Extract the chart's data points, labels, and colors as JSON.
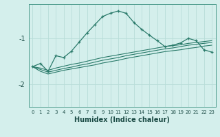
{
  "xlabel": "Humidex (Indice chaleur)",
  "ylabel": "",
  "background_color": "#d4efec",
  "line_color": "#2a7a6a",
  "grid_color": "#b8ddd8",
  "xlim": [
    -0.5,
    23.5
  ],
  "ylim": [
    -2.5,
    -0.25
  ],
  "xticks": [
    0,
    1,
    2,
    3,
    4,
    5,
    6,
    7,
    8,
    9,
    10,
    11,
    12,
    13,
    14,
    15,
    16,
    17,
    18,
    19,
    20,
    21,
    22,
    23
  ],
  "yticks": [
    -2,
    -1
  ],
  "series1_x": [
    0,
    1,
    2,
    3,
    4,
    5,
    6,
    7,
    8,
    9,
    10,
    11,
    12,
    13,
    14,
    15,
    16,
    17,
    18,
    19,
    20,
    21,
    22,
    23
  ],
  "series1_y": [
    -1.62,
    -1.55,
    -1.72,
    -1.38,
    -1.42,
    -1.28,
    -1.08,
    -0.88,
    -0.7,
    -0.52,
    -0.45,
    -0.4,
    -0.45,
    -0.65,
    -0.8,
    -0.93,
    -1.05,
    -1.18,
    -1.15,
    -1.1,
    -1.0,
    -1.05,
    -1.25,
    -1.3
  ],
  "series2_x": [
    0,
    1,
    2,
    3,
    4,
    5,
    6,
    7,
    8,
    9,
    10,
    11,
    12,
    13,
    14,
    15,
    16,
    17,
    18,
    19,
    20,
    21,
    22,
    23
  ],
  "series2_y": [
    -1.62,
    -1.65,
    -1.7,
    -1.65,
    -1.61,
    -1.57,
    -1.54,
    -1.5,
    -1.46,
    -1.42,
    -1.39,
    -1.36,
    -1.33,
    -1.3,
    -1.27,
    -1.24,
    -1.21,
    -1.18,
    -1.16,
    -1.14,
    -1.11,
    -1.09,
    -1.07,
    -1.05
  ],
  "series3_x": [
    0,
    1,
    2,
    3,
    4,
    5,
    6,
    7,
    8,
    9,
    10,
    11,
    12,
    13,
    14,
    15,
    16,
    17,
    18,
    19,
    20,
    21,
    22,
    23
  ],
  "series3_y": [
    -1.62,
    -1.68,
    -1.74,
    -1.7,
    -1.66,
    -1.63,
    -1.59,
    -1.56,
    -1.52,
    -1.48,
    -1.45,
    -1.42,
    -1.38,
    -1.35,
    -1.32,
    -1.29,
    -1.26,
    -1.23,
    -1.21,
    -1.18,
    -1.15,
    -1.13,
    -1.11,
    -1.09
  ],
  "series4_x": [
    0,
    1,
    2,
    3,
    4,
    5,
    6,
    7,
    8,
    9,
    10,
    11,
    12,
    13,
    14,
    15,
    16,
    17,
    18,
    19,
    20,
    21,
    22,
    23
  ],
  "series4_y": [
    -1.62,
    -1.72,
    -1.78,
    -1.74,
    -1.7,
    -1.67,
    -1.64,
    -1.61,
    -1.58,
    -1.54,
    -1.51,
    -1.48,
    -1.44,
    -1.41,
    -1.38,
    -1.35,
    -1.32,
    -1.29,
    -1.27,
    -1.25,
    -1.22,
    -1.2,
    -1.17,
    -1.15
  ]
}
